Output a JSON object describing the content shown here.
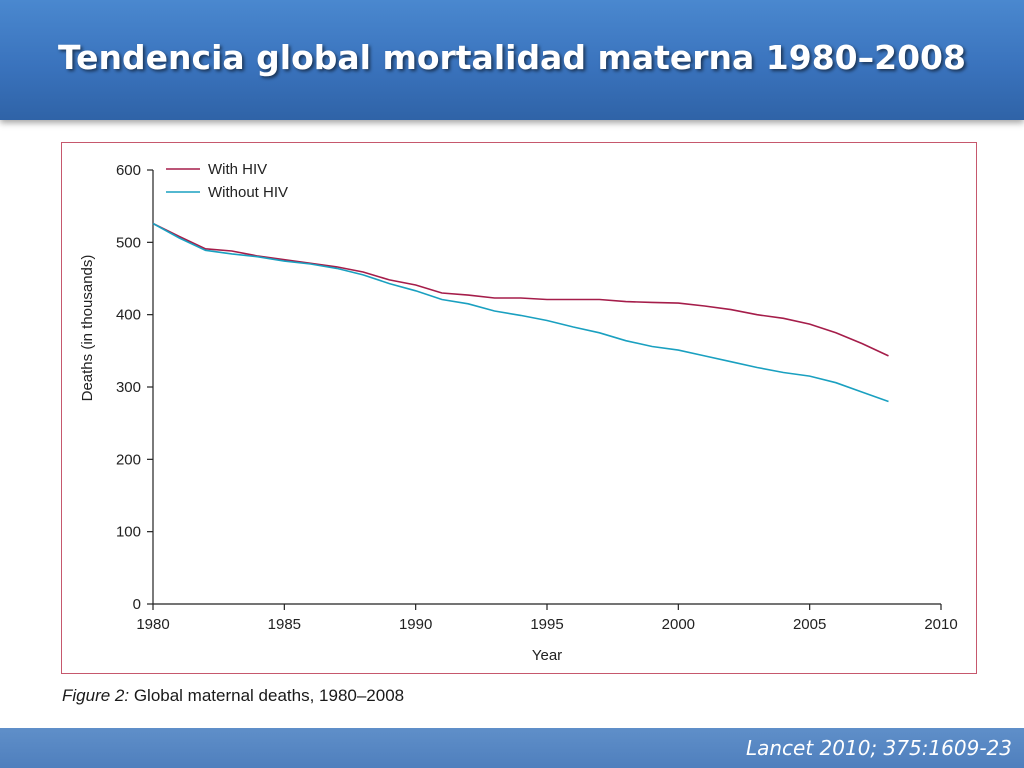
{
  "slide": {
    "title": "Tendencia global mortalidad materna 1980–2008",
    "caption_label": "Figure 2:",
    "caption_text": " Global maternal deaths, 1980–2008",
    "citation": "Lancet 2010; 375:1609-23"
  },
  "colors": {
    "header": "#3a73bd",
    "with_hiv": "#a51d4a",
    "without_hiv": "#1aa0c0",
    "frame": "#c6586d"
  },
  "chart_data": {
    "type": "line",
    "title": "",
    "xlabel": "Year",
    "ylabel": "Deaths (in thousands)",
    "xlim": [
      1980,
      2010
    ],
    "ylim": [
      0,
      600
    ],
    "xticks": [
      1980,
      1985,
      1990,
      1995,
      2000,
      2005,
      2010
    ],
    "yticks": [
      0,
      100,
      200,
      300,
      400,
      500,
      600
    ],
    "grid": false,
    "legend_position": "top-left",
    "x": [
      1980,
      1981,
      1982,
      1983,
      1984,
      1985,
      1986,
      1987,
      1988,
      1989,
      1990,
      1991,
      1992,
      1993,
      1994,
      1995,
      1996,
      1997,
      1998,
      1999,
      2000,
      2001,
      2002,
      2003,
      2004,
      2005,
      2006,
      2007,
      2008
    ],
    "series": [
      {
        "name": "With HIV",
        "color": "#a51d4a",
        "values": [
          526,
          508,
          491,
          488,
          481,
          476,
          471,
          466,
          459,
          448,
          441,
          430,
          427,
          423,
          423,
          421,
          421,
          421,
          418,
          417,
          416,
          412,
          407,
          400,
          395,
          387,
          375,
          360,
          343
        ]
      },
      {
        "name": "Without HIV",
        "color": "#1aa0c0",
        "values": [
          526,
          506,
          489,
          484,
          480,
          474,
          470,
          464,
          455,
          443,
          433,
          421,
          415,
          405,
          399,
          392,
          383,
          375,
          364,
          356,
          351,
          343,
          335,
          327,
          320,
          315,
          306,
          293,
          280
        ]
      }
    ]
  }
}
